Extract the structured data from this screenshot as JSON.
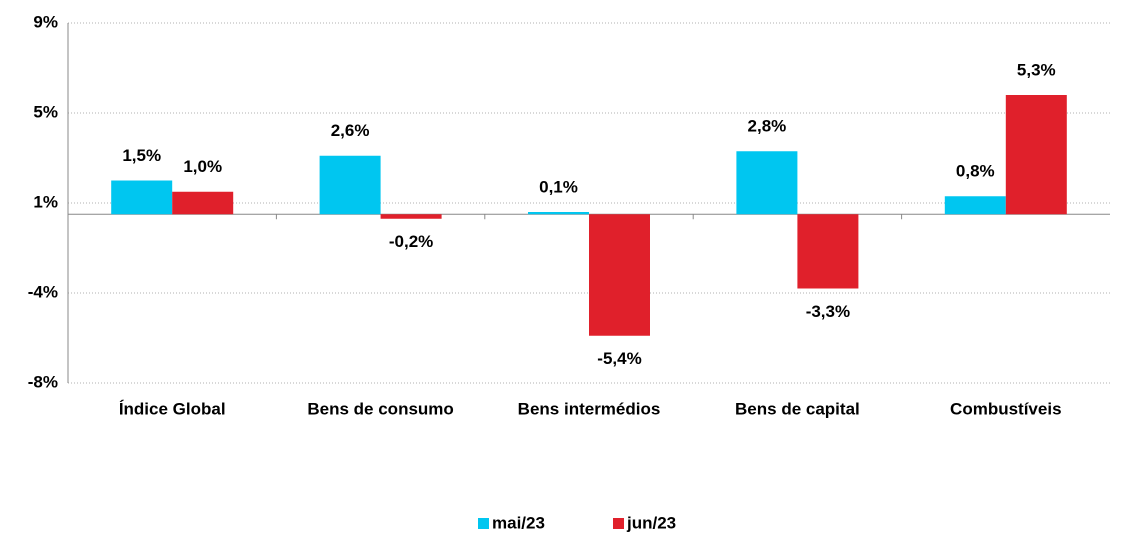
{
  "chart_data": {
    "type": "bar",
    "categories": [
      "Índice Global",
      "Bens de consumo",
      "Bens intermédios",
      "Bens de capital",
      "Combustíveis"
    ],
    "series": [
      {
        "name": "mai/23",
        "color": "#00c6f0",
        "values": [
          1.5,
          2.6,
          0.1,
          2.8,
          0.8
        ],
        "value_labels": [
          "1,5%",
          "2,6%",
          "0,1%",
          "2,8%",
          "0,8%"
        ]
      },
      {
        "name": "jun/23",
        "color": "#e0202b",
        "values": [
          1.0,
          -0.2,
          -5.4,
          -3.3,
          5.3
        ],
        "value_labels": [
          "1,0%",
          "-0,2%",
          "-5,4%",
          "-3,3%",
          "5,3%"
        ]
      }
    ],
    "ylim": [
      -7.5,
      8.5
    ],
    "yticks": [
      {
        "value": -7.5,
        "label": "-8%"
      },
      {
        "value": -3.5,
        "label": "-4%"
      },
      {
        "value": 0.5,
        "label": "1%"
      },
      {
        "value": 4.5,
        "label": "5%"
      },
      {
        "value": 8.5,
        "label": "9%"
      }
    ],
    "grid": true,
    "legend": "bottom"
  }
}
